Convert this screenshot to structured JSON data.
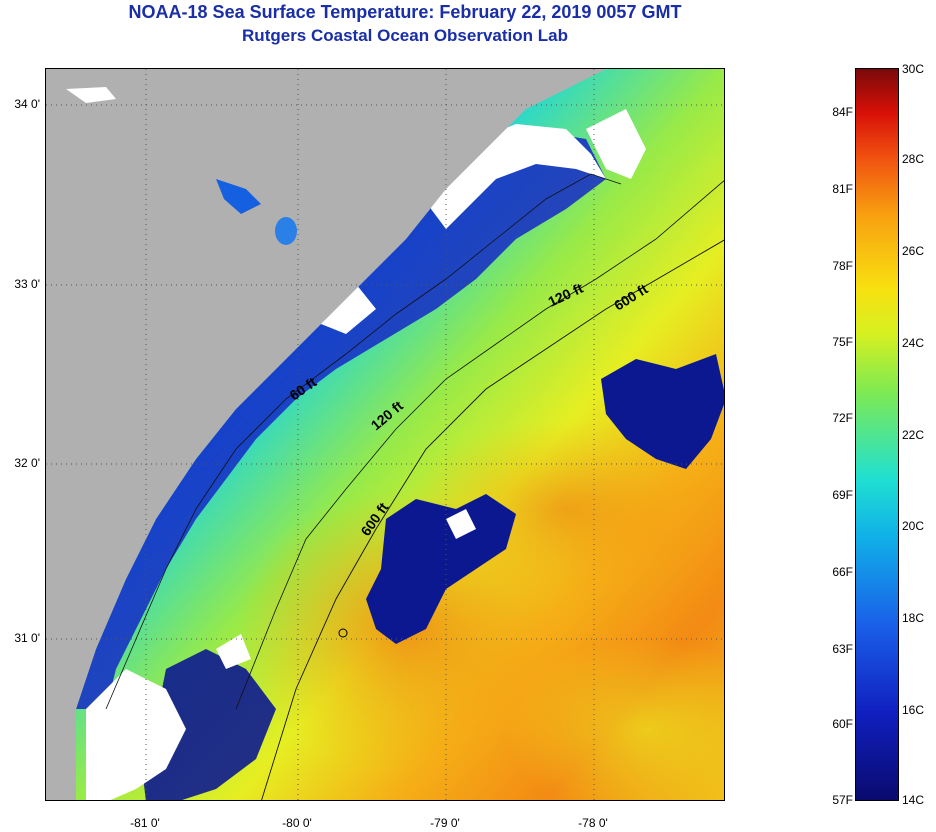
{
  "title": {
    "line1": "NOAA-18 Sea Surface Temperature:  February 22, 2019 0057 GMT",
    "line2": "Rutgers Coastal Ocean Observation Lab"
  },
  "map": {
    "lat_ticks": [
      "34 0'",
      "33 0'",
      "32 0'",
      "31 0'"
    ],
    "lon_ticks": [
      "-81 0'",
      "-80 0'",
      "-79 0'",
      "-78 0'"
    ],
    "contours": [
      {
        "label": "60 ft"
      },
      {
        "label": "120 ft"
      },
      {
        "label": "120 ft"
      },
      {
        "label": "600 ft"
      },
      {
        "label": "600 ft"
      }
    ],
    "colors": {
      "land": "#b0b0b0",
      "cloud": "#ffffff",
      "cold": "#0a1490",
      "warm": "#f07a10"
    }
  },
  "colorbar": {
    "fahrenheit": [
      "84F",
      "81F",
      "78F",
      "75F",
      "72F",
      "69F",
      "66F",
      "63F",
      "60F",
      "57F"
    ],
    "celsius": [
      "30C",
      "28C",
      "26C",
      "24C",
      "22C",
      "20C",
      "18C",
      "16C",
      "14C"
    ]
  }
}
